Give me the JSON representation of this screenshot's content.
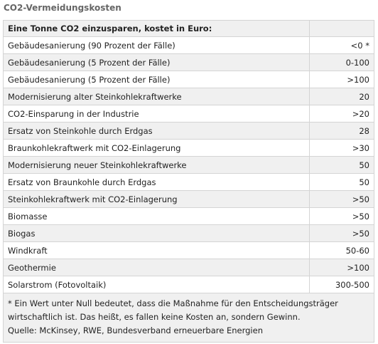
{
  "title": "CO2-Vermeidungskosten",
  "table": {
    "header": "Eine Tonne CO2 einzusparen, kostet in Euro:",
    "header_value": "",
    "rows": [
      {
        "label": "Gebäudesanierung (90 Prozent der Fälle)",
        "value": "<0 *"
      },
      {
        "label": "Gebäudesanierung (5 Prozent der Fälle)",
        "value": "0-100"
      },
      {
        "label": "Gebäudesanierung (5 Prozent der Fälle)",
        "value": ">100"
      },
      {
        "label": "Modernisierung alter Steinkohlekraftwerke",
        "value": "20"
      },
      {
        "label": "CO2-Einsparung in der Industrie",
        "value": ">20"
      },
      {
        "label": "Ersatz von Steinkohle durch Erdgas",
        "value": "28"
      },
      {
        "label": "Braunkohlekraftwerk mit CO2-Einlagerung",
        "value": ">30"
      },
      {
        "label": "Modernisierung neuer Steinkohlekraftwerke",
        "value": "50"
      },
      {
        "label": "Ersatz von Braunkohle durch Erdgas",
        "value": "50"
      },
      {
        "label": "Steinkohlekraftwerk mit CO2-Einlagerung",
        "value": ">50"
      },
      {
        "label": "Biomasse",
        "value": ">50"
      },
      {
        "label": "Biogas",
        "value": ">50"
      },
      {
        "label": "Windkraft",
        "value": "50-60"
      },
      {
        "label": "Geothermie",
        "value": ">100"
      },
      {
        "label": "Solarstrom (Fotovoltaik)",
        "value": "300-500"
      }
    ],
    "footnote": [
      "* Ein Wert unter Null bedeutet, dass die Maßnahme für den Entscheidungsträger",
      "wirtschaftlich ist. Das heißt, es fallen keine Kosten an, sondern Gewinn.",
      "Quelle: McKinsey, RWE, Bundesverband erneuerbare Energien"
    ]
  }
}
